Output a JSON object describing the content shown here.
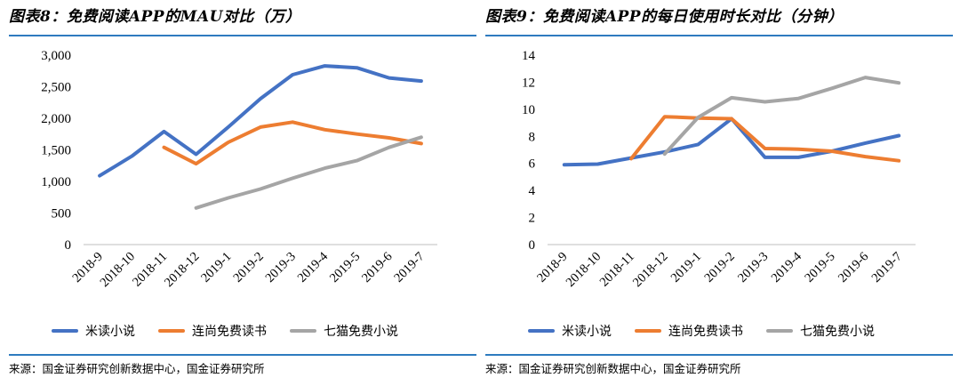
{
  "chart_data": [
    {
      "type": "line",
      "title": "图表8：免费阅读APP的MAU对比（万）",
      "source": "来源：国金证券研究创新数据中心，国金证券研究所",
      "categories": [
        "2018-9",
        "2018-10",
        "2018-11",
        "2018-12",
        "2019-1",
        "2019-2",
        "2019-3",
        "2019-4",
        "2019-5",
        "2019-6",
        "2019-7"
      ],
      "ylim": [
        0,
        3000
      ],
      "yticks": [
        "0",
        "500",
        "1,000",
        "1,500",
        "2,000",
        "2,500",
        "3,000"
      ],
      "ytick_values": [
        0,
        500,
        1000,
        1500,
        2000,
        2500,
        3000
      ],
      "grid": false,
      "legend": "bottom",
      "series": [
        {
          "name": "米读小说",
          "color": "#4472c4",
          "values": [
            1090,
            1400,
            1790,
            1430,
            1860,
            2310,
            2690,
            2830,
            2800,
            2640,
            2590
          ]
        },
        {
          "name": "连尚免费读书",
          "color": "#ed7d31",
          "values": [
            null,
            null,
            1540,
            1280,
            1620,
            1860,
            1940,
            1820,
            1750,
            1690,
            1600
          ]
        },
        {
          "name": "七猫免费小说",
          "color": "#a5a5a5",
          "values": [
            null,
            null,
            null,
            580,
            740,
            880,
            1050,
            1210,
            1330,
            1540,
            1700
          ]
        }
      ]
    },
    {
      "type": "line",
      "title": "图表9：免费阅读APP的每日使用时长对比（分钟）",
      "source": "来源：国金证券研究创新数据中心，国金证券研究所",
      "categories": [
        "2018-9",
        "2018-10",
        "2018-11",
        "2018-12",
        "2019-1",
        "2019-2",
        "2019-3",
        "2019-4",
        "2019-5",
        "2019-6",
        "2019-7"
      ],
      "ylim": [
        0,
        14
      ],
      "yticks": [
        "0",
        "2",
        "4",
        "6",
        "8",
        "10",
        "12",
        "14"
      ],
      "ytick_values": [
        0,
        2,
        4,
        6,
        8,
        10,
        12,
        14
      ],
      "grid": false,
      "legend": "bottom",
      "series": [
        {
          "name": "米读小说",
          "color": "#4472c4",
          "values": [
            5.9,
            5.95,
            6.4,
            6.85,
            7.4,
            9.3,
            6.45,
            6.45,
            6.9,
            7.5,
            8.05
          ]
        },
        {
          "name": "连尚免费读书",
          "color": "#ed7d31",
          "values": [
            null,
            null,
            6.35,
            9.45,
            9.35,
            9.3,
            7.1,
            7.05,
            6.9,
            6.5,
            6.2
          ]
        },
        {
          "name": "七猫免费小说",
          "color": "#a5a5a5",
          "values": [
            null,
            null,
            null,
            6.7,
            9.4,
            10.85,
            10.55,
            10.8,
            11.55,
            12.35,
            11.95
          ]
        }
      ]
    }
  ]
}
